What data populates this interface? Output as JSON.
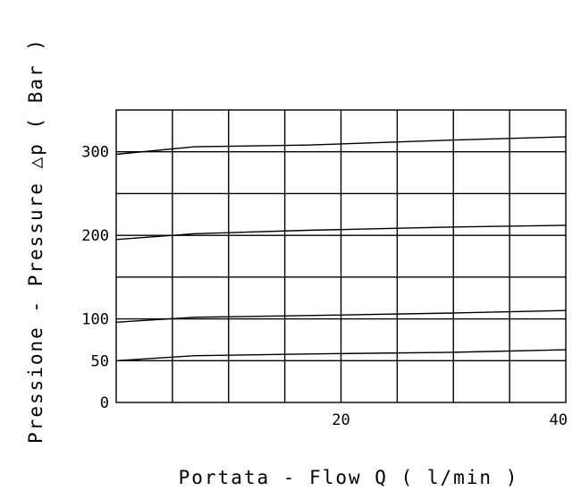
{
  "chart_data": {
    "type": "line",
    "xlabel": "Portata - Flow  Q ( l/min )",
    "ylabel": "Pressione - Pressure △p ( Bar )",
    "xlim": [
      0,
      40
    ],
    "ylim": [
      0,
      350
    ],
    "x_ticks": [
      "20",
      "40"
    ],
    "y_ticks": [
      {
        "label": "300",
        "value": 300
      },
      {
        "label": "200",
        "value": 200
      },
      {
        "label": "100",
        "value": 100
      },
      {
        "label": "50",
        "value": 50
      },
      {
        "label": "0",
        "value": 0
      }
    ],
    "grid": true,
    "series": [
      {
        "x": [
          0,
          7,
          17,
          30,
          40
        ],
        "values": [
          297,
          306,
          308,
          314,
          318
        ]
      },
      {
        "x": [
          0,
          7,
          17,
          30,
          40
        ],
        "values": [
          195,
          202,
          206,
          210,
          212
        ]
      },
      {
        "x": [
          0,
          7,
          17,
          30,
          40
        ],
        "values": [
          96,
          102,
          104,
          107,
          110
        ]
      },
      {
        "x": [
          0,
          7,
          17,
          30,
          40
        ],
        "values": [
          50,
          56,
          58,
          60,
          63
        ]
      }
    ]
  }
}
